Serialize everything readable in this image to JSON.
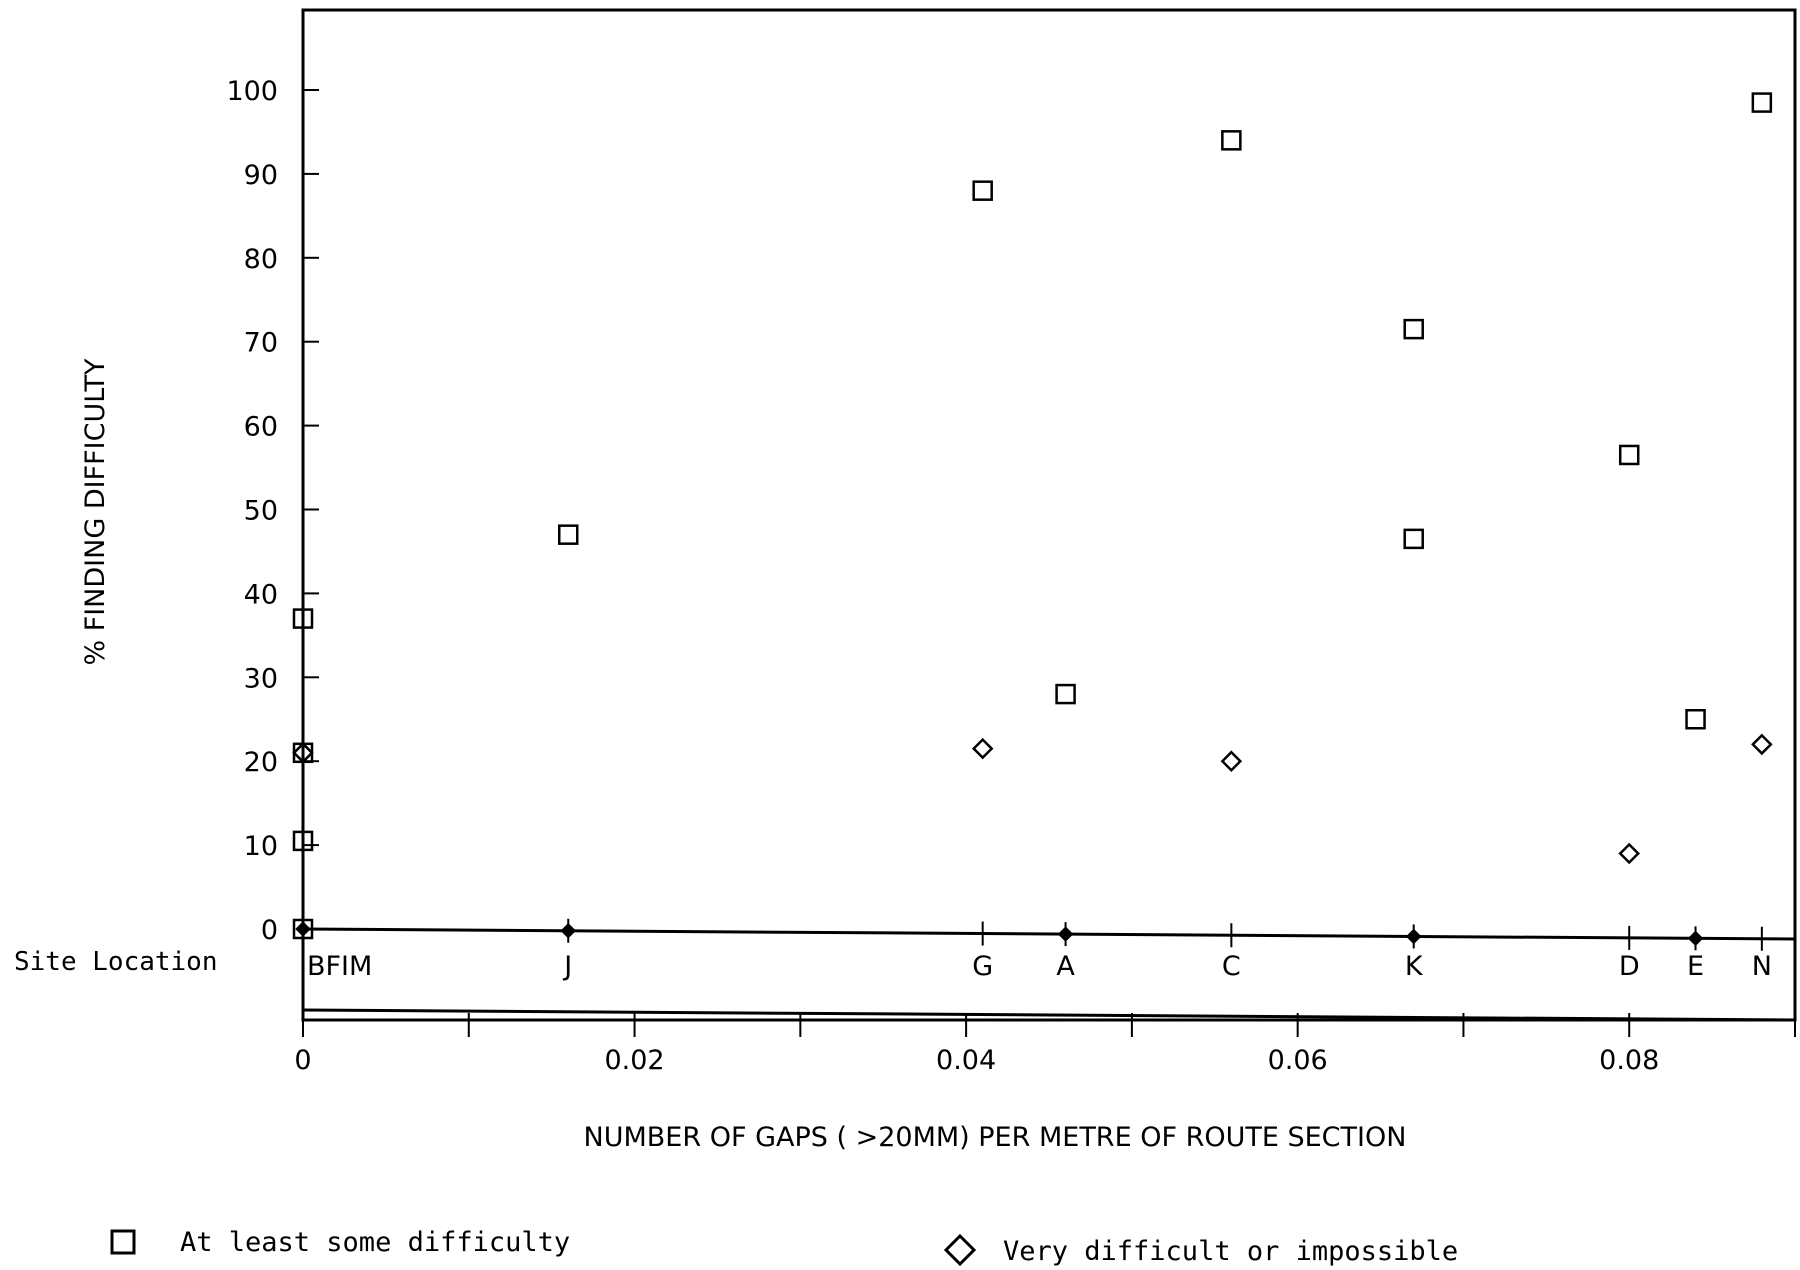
{
  "chart_data": {
    "type": "scatter",
    "title": "",
    "xlabel": "NUMBER OF GAPS ( >20MM) PER METRE OF ROUTE SECTION",
    "ylabel": "% FINDING DIFFICULTY",
    "xlim": [
      0,
      0.09
    ],
    "ylim": [
      0,
      100
    ],
    "x_ticks": [
      0,
      0.02,
      0.04,
      0.06,
      0.08
    ],
    "x_tick_labels": [
      "0",
      "0.02",
      "0.04",
      "0.06",
      "0.08"
    ],
    "y_ticks": [
      0,
      10,
      20,
      30,
      40,
      50,
      60,
      70,
      80,
      90,
      100
    ],
    "y_tick_labels": [
      "0",
      "10",
      "20",
      "30",
      "40",
      "50",
      "60",
      "70",
      "80",
      "90",
      "100"
    ],
    "grid": false,
    "site_row_label": "Site Location",
    "sites": [
      {
        "label": "BFIM",
        "x": 0
      },
      {
        "label": "J",
        "x": 0.016
      },
      {
        "label": "G",
        "x": 0.041
      },
      {
        "label": "A",
        "x": 0.046
      },
      {
        "label": "C",
        "x": 0.056
      },
      {
        "label": "K",
        "x": 0.067
      },
      {
        "label": "D",
        "x": 0.08
      },
      {
        "label": "E",
        "x": 0.084
      },
      {
        "label": "N",
        "x": 0.088
      }
    ],
    "series": [
      {
        "name": "At least some difficulty",
        "marker": "square",
        "points": [
          {
            "x": 0,
            "y": 37
          },
          {
            "x": 0,
            "y": 21
          },
          {
            "x": 0,
            "y": 10.5
          },
          {
            "x": 0,
            "y": 0
          },
          {
            "x": 0.016,
            "y": 47
          },
          {
            "x": 0.041,
            "y": 88
          },
          {
            "x": 0.046,
            "y": 28
          },
          {
            "x": 0.056,
            "y": 94
          },
          {
            "x": 0.067,
            "y": 71.5
          },
          {
            "x": 0.067,
            "y": 46.5
          },
          {
            "x": 0.08,
            "y": 56.5
          },
          {
            "x": 0.084,
            "y": 25
          },
          {
            "x": 0.088,
            "y": 98.5
          }
        ]
      },
      {
        "name": "Very difficult or impossible",
        "marker": "diamond",
        "points": [
          {
            "x": 0,
            "y": 21
          },
          {
            "x": 0,
            "y": 0
          },
          {
            "x": 0.016,
            "y": 0
          },
          {
            "x": 0.041,
            "y": 21.5
          },
          {
            "x": 0.046,
            "y": 0
          },
          {
            "x": 0.056,
            "y": 20
          },
          {
            "x": 0.067,
            "y": 0
          },
          {
            "x": 0.08,
            "y": 9
          },
          {
            "x": 0.084,
            "y": 0
          },
          {
            "x": 0.088,
            "y": 22
          }
        ]
      }
    ],
    "legend": {
      "placement": "bottom",
      "items": [
        {
          "marker": "square",
          "label": "At least some difficulty"
        },
        {
          "marker": "diamond",
          "label": "Very difficult or impossible"
        }
      ]
    }
  }
}
